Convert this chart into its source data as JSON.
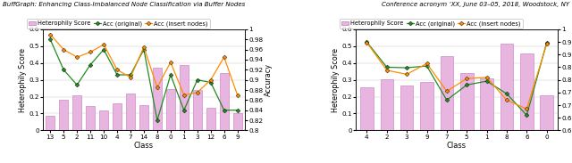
{
  "title_left": "BuffGraph: Enhancing Class-Imbalanced Node Classification via Buffer Nodes",
  "title_right": "Conference acronym ‘XX, June 03–05, 2018, Woodstock, NY",
  "chart1": {
    "classes": [
      "13",
      "5",
      "2",
      "11",
      "10",
      "4",
      "7",
      "14",
      "8",
      "0",
      "1",
      "3",
      "12",
      "6",
      "9"
    ],
    "hetero": [
      0.085,
      0.18,
      0.21,
      0.145,
      0.12,
      0.16,
      0.22,
      0.15,
      0.37,
      0.245,
      0.39,
      0.24,
      0.135,
      0.34,
      0.1
    ],
    "acc_orig": [
      0.98,
      0.92,
      0.89,
      0.93,
      0.96,
      0.91,
      0.91,
      0.96,
      0.82,
      0.91,
      0.84,
      0.9,
      0.895,
      0.84,
      0.84
    ],
    "acc_insert": [
      0.99,
      0.96,
      0.945,
      0.955,
      0.97,
      0.92,
      0.905,
      0.965,
      0.885,
      0.935,
      0.87,
      0.875,
      0.9,
      0.945,
      0.87
    ],
    "ylim_left": [
      0,
      0.6
    ],
    "ylim_right": [
      0.8,
      1.0
    ],
    "yticks_right": [
      0.8,
      0.82,
      0.84,
      0.86,
      0.88,
      0.9,
      0.92,
      0.94,
      0.96,
      0.98,
      1.0
    ],
    "ytick_right_labels": [
      "0.8",
      "0.82",
      "0.84",
      "0.86",
      "0.88",
      "0.9",
      "0.92",
      "0.94",
      "0.96",
      "0.98",
      "1"
    ],
    "xlabel": "Class",
    "ylabel_left": "Heterophily Score",
    "ylabel_right": "Accuracy"
  },
  "chart2": {
    "classes": [
      "4",
      "2",
      "3",
      "9",
      "7",
      "5",
      "1",
      "8",
      "6",
      "0"
    ],
    "hetero": [
      0.255,
      0.305,
      0.265,
      0.29,
      0.44,
      0.34,
      0.31,
      0.515,
      0.455,
      0.21
    ],
    "acc_orig": [
      0.95,
      0.85,
      0.848,
      0.855,
      0.72,
      0.78,
      0.795,
      0.745,
      0.66,
      0.948
    ],
    "acc_insert": [
      0.948,
      0.838,
      0.822,
      0.865,
      0.755,
      0.805,
      0.81,
      0.72,
      0.685,
      0.942
    ],
    "ylim_left": [
      0,
      0.6
    ],
    "ylim_right": [
      0.6,
      1.0
    ],
    "yticks_right": [
      0.6,
      0.65,
      0.7,
      0.75,
      0.8,
      0.85,
      0.9,
      0.95,
      1.0
    ],
    "ytick_right_labels": [
      "0.6",
      "0.65",
      "0.7",
      "0.75",
      "0.8",
      "0.85",
      "0.9",
      "0.95",
      "1"
    ],
    "xlabel": "Class",
    "ylabel_left": "Heterophily Score",
    "ylabel_right": "Accuracy"
  },
  "bar_color": "#e8b4e0",
  "bar_edgecolor": "#c478bc",
  "line_orig_color": "#228B22",
  "line_insert_color": "#FF8C00",
  "legend_labels": [
    "Heterophily Score",
    "Acc (original)",
    "Acc (insert nodes)"
  ]
}
